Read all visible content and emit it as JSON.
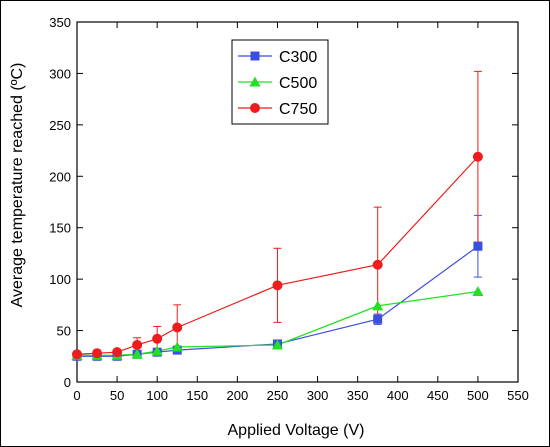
{
  "chart_data": {
    "type": "line",
    "xlabel": "Applied Voltage (V)",
    "ylabel": "Average temperature reached (ºC)",
    "xlim": [
      0,
      550
    ],
    "ylim": [
      0,
      350
    ],
    "xticks": [
      0,
      50,
      100,
      150,
      200,
      250,
      300,
      350,
      400,
      450,
      500,
      550
    ],
    "yticks": [
      0,
      50,
      100,
      150,
      200,
      250,
      300,
      350
    ],
    "legend_position": "top-center",
    "grid": false,
    "series": [
      {
        "name": "C300",
        "color": "#3b4fe0",
        "marker": "square",
        "points": [
          {
            "x": 0,
            "y": 25,
            "err": 0
          },
          {
            "x": 25,
            "y": 25,
            "err": 0
          },
          {
            "x": 50,
            "y": 25,
            "err": 0
          },
          {
            "x": 75,
            "y": 27,
            "err": 0
          },
          {
            "x": 100,
            "y": 29,
            "err": 2
          },
          {
            "x": 125,
            "y": 31,
            "err": 3
          },
          {
            "x": 250,
            "y": 37,
            "err": 3
          },
          {
            "x": 375,
            "y": 61,
            "err": 5
          },
          {
            "x": 500,
            "y": 132,
            "err": 30
          }
        ]
      },
      {
        "name": "C500",
        "color": "#22e022",
        "marker": "triangle",
        "points": [
          {
            "x": 0,
            "y": 26,
            "err": 0
          },
          {
            "x": 25,
            "y": 26,
            "err": 0
          },
          {
            "x": 50,
            "y": 26,
            "err": 0
          },
          {
            "x": 75,
            "y": 27,
            "err": 0
          },
          {
            "x": 100,
            "y": 30,
            "err": 0
          },
          {
            "x": 125,
            "y": 34,
            "err": 0
          },
          {
            "x": 250,
            "y": 36,
            "err": 0
          },
          {
            "x": 375,
            "y": 74,
            "err": 0
          },
          {
            "x": 500,
            "y": 88,
            "err": 0
          }
        ]
      },
      {
        "name": "C750",
        "color": "#ee1c1c",
        "marker": "circle",
        "points": [
          {
            "x": 0,
            "y": 27,
            "err": 0
          },
          {
            "x": 25,
            "y": 28,
            "err": 0
          },
          {
            "x": 50,
            "y": 29,
            "err": 0
          },
          {
            "x": 75,
            "y": 36,
            "err": 7
          },
          {
            "x": 100,
            "y": 42,
            "err": 12
          },
          {
            "x": 125,
            "y": 53,
            "err": 22
          },
          {
            "x": 250,
            "y": 94,
            "err": 36
          },
          {
            "x": 375,
            "y": 114,
            "err": 56
          },
          {
            "x": 500,
            "y": 219,
            "err": 83
          }
        ]
      }
    ]
  }
}
